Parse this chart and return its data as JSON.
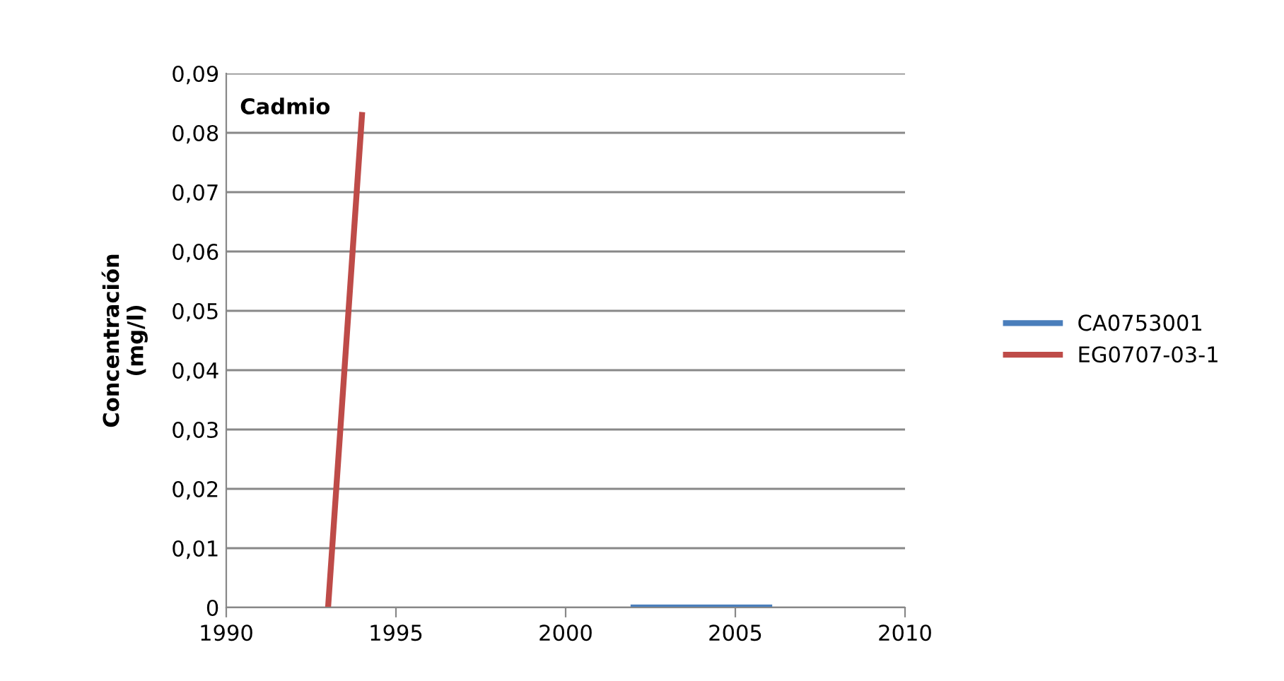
{
  "chart_data": {
    "type": "line",
    "title": "Cadmio",
    "ylabel": "Concentración\n(mg/l)",
    "series": [
      {
        "name": "CA0753001",
        "color": "#4a7ebb",
        "x": [
          2002,
          2006
        ],
        "values": [
          0,
          0
        ]
      },
      {
        "name": "EG0707-03-1",
        "color": "#be4b48",
        "x": [
          1993,
          1994
        ],
        "values": [
          0,
          0.083
        ]
      }
    ],
    "xlim": [
      1990,
      2010
    ],
    "xticks": [
      1990,
      1995,
      2000,
      2005,
      2010
    ],
    "ylim": [
      0,
      0.09
    ],
    "yticks": [
      {
        "value": 0,
        "label": "0"
      },
      {
        "value": 0.01,
        "label": "0,01"
      },
      {
        "value": 0.02,
        "label": "0,02"
      },
      {
        "value": 0.03,
        "label": "0,03"
      },
      {
        "value": 0.04,
        "label": "0,04"
      },
      {
        "value": 0.05,
        "label": "0,05"
      },
      {
        "value": 0.06,
        "label": "0,06"
      },
      {
        "value": 0.07,
        "label": "0,07"
      },
      {
        "value": 0.08,
        "label": "0,08"
      },
      {
        "value": 0.09,
        "label": "0,09"
      }
    ],
    "grid": "y",
    "legend": "right",
    "marker": "none",
    "line_style": "solid"
  }
}
